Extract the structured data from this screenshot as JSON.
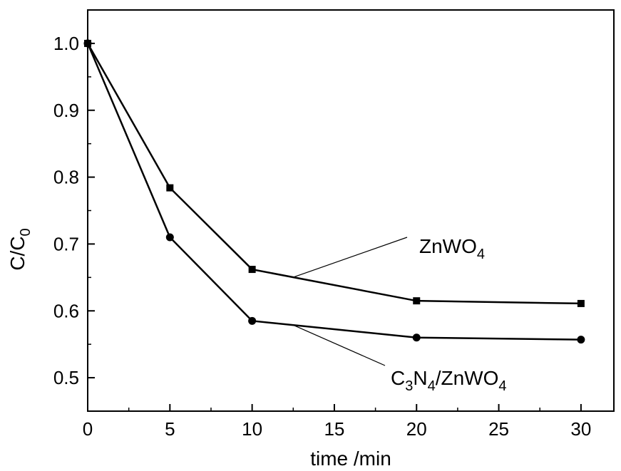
{
  "chart_data": {
    "type": "line",
    "x": [
      0,
      5,
      10,
      20,
      30
    ],
    "series": [
      {
        "name": "ZnWO4",
        "marker": "square",
        "values": [
          1.0,
          0.784,
          0.662,
          0.615,
          0.611
        ]
      },
      {
        "name": "C3N4/ZnWO4",
        "marker": "circle",
        "values": [
          1.0,
          0.71,
          0.585,
          0.56,
          0.557
        ]
      }
    ],
    "xlabel": "time /min",
    "ylabel": {
      "main": "C/C",
      "sub": "0"
    },
    "xlim": [
      0,
      32
    ],
    "ylim": [
      0.45,
      1.05
    ],
    "xticks": [
      0,
      5,
      10,
      15,
      20,
      25,
      30
    ],
    "yticks": [
      0.5,
      0.6,
      0.7,
      0.8,
      0.9,
      1.0
    ],
    "xtick_labels": [
      "0",
      "5",
      "10",
      "15",
      "20",
      "25",
      "30"
    ],
    "ytick_labels": [
      "0.5",
      "0.6",
      "0.7",
      "0.8",
      "0.9",
      "1.0"
    ],
    "annotations": [
      {
        "series": 0,
        "parts": [
          {
            "t": "ZnWO"
          },
          {
            "t": "4",
            "sub": true
          }
        ],
        "at_x": 12.5
      },
      {
        "series": 1,
        "parts": [
          {
            "t": "C"
          },
          {
            "t": "3",
            "sub": true
          },
          {
            "t": "N"
          },
          {
            "t": "4",
            "sub": true
          },
          {
            "t": "/ZnWO"
          },
          {
            "t": "4",
            "sub": true
          }
        ],
        "at_x": 12.5
      }
    ],
    "grid": false,
    "legend": "none",
    "line_color": "#000000"
  }
}
